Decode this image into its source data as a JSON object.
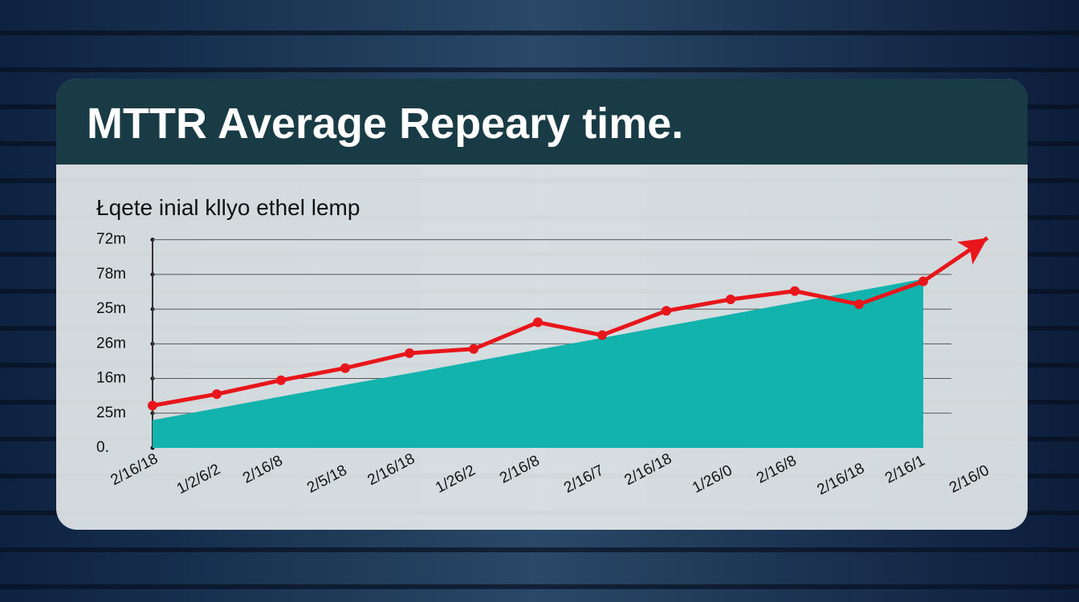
{
  "chart_data": {
    "type": "line",
    "title": "MTTR Average Repeary time.",
    "subtitle": "Łqete inial kllyo ethel lemp",
    "categories": [
      "2/16/18",
      "1/2/6/2",
      "2/16/8",
      "2/5/18",
      "2/16/18",
      "1/26/2",
      "2/16/8",
      "2/16/7",
      "2/16/18",
      "1/26/0",
      "2/16/8",
      "2/16/18",
      "2/16/1",
      "2/16/0"
    ],
    "series": [
      {
        "type": "area",
        "color": "#13b3ad",
        "values": [
          0.8,
          1.14,
          1.48,
          1.82,
          2.15,
          2.49,
          2.83,
          3.17,
          3.51,
          3.85,
          4.19,
          4.53,
          4.87,
          null
        ]
      },
      {
        "type": "line",
        "color": "#e8161b",
        "values": [
          1.22,
          1.55,
          1.95,
          2.3,
          2.73,
          2.85,
          3.62,
          3.25,
          3.95,
          4.28,
          4.52,
          4.14,
          4.8,
          6.05
        ]
      }
    ],
    "ylim": [
      0,
      6.2
    ],
    "yticks": [
      {
        "value": 0,
        "label": "0."
      },
      {
        "value": 1,
        "label": "25m"
      },
      {
        "value": 2,
        "label": "16m"
      },
      {
        "value": 3,
        "label": "26m"
      },
      {
        "value": 4,
        "label": "25m"
      },
      {
        "value": 5,
        "label": "78m"
      },
      {
        "value": 6,
        "label": "72m"
      }
    ],
    "grid": true
  }
}
